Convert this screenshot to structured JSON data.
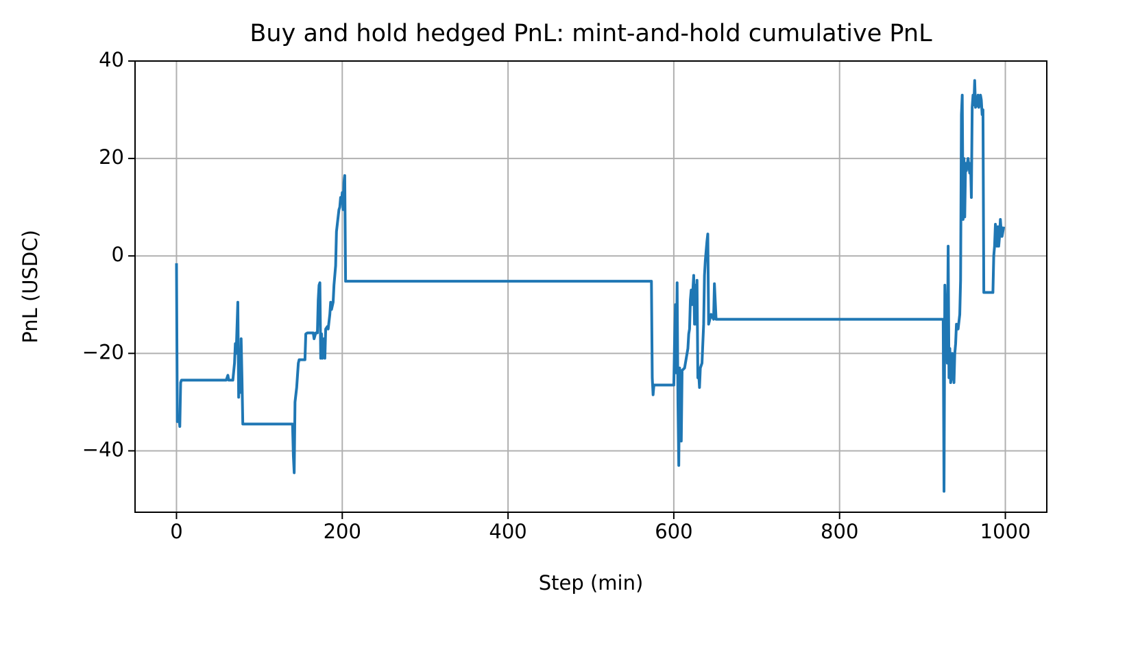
{
  "chart_data": {
    "type": "line",
    "title": "Buy and hold hedged PnL: mint-and-hold cumulative PnL",
    "x_label": "Step (min)",
    "y_label": "PnL (USDC)",
    "xlim": [
      -50,
      1050
    ],
    "ylim": [
      -52.6,
      40
    ],
    "xticks": [
      0,
      200,
      400,
      600,
      800,
      1000
    ],
    "yticks": [
      {
        "value": -40,
        "label": "−40"
      },
      {
        "value": -20,
        "label": "−20"
      },
      0,
      20,
      40
    ],
    "grid": true,
    "series": [
      {
        "color": "#1f77b4",
        "x": [
          0,
          1,
          3,
          4,
          5,
          6,
          60,
          62,
          63,
          68,
          70,
          71,
          72,
          74,
          75,
          76,
          77,
          78,
          79,
          80,
          140,
          141,
          142,
          143,
          145,
          147,
          148,
          155,
          156,
          158,
          165,
          166,
          168,
          170,
          171,
          172,
          173,
          174,
          175,
          176,
          178,
          179,
          180,
          182,
          183,
          185,
          186,
          187,
          189,
          190,
          192,
          193,
          195,
          196,
          197,
          198,
          199,
          200,
          201,
          202,
          203,
          204,
          573,
          574,
          575,
          576,
          600,
          601,
          602,
          603,
          604,
          605,
          606,
          607,
          608,
          609,
          610,
          613,
          615,
          617,
          618,
          619,
          620,
          621,
          622,
          623,
          624,
          625,
          626,
          627,
          628,
          629,
          630,
          631,
          632,
          634,
          635,
          636,
          637,
          638,
          640,
          641,
          642,
          645,
          648,
          649,
          651,
          653,
          925,
          926,
          927,
          928,
          929,
          930,
          931,
          932,
          933,
          934,
          935,
          936,
          937,
          938,
          939,
          940,
          941,
          943,
          945,
          946,
          947,
          948,
          949,
          950,
          951,
          952,
          953,
          955,
          957,
          958,
          959,
          960,
          961,
          962,
          963,
          964,
          966,
          967,
          968,
          970,
          971,
          972,
          973,
          974,
          985,
          986,
          987,
          988,
          989,
          990,
          991,
          992,
          993,
          994,
          995,
          996,
          998
        ],
        "values": [
          -1.5,
          -34,
          -33,
          -35,
          -26,
          -25.5,
          -25.5,
          -24.5,
          -25.5,
          -25.5,
          -22,
          -18,
          -20,
          -9.5,
          -29,
          -22,
          -28,
          -17,
          -25,
          -34.5,
          -34.5,
          -41,
          -44.5,
          -30,
          -27,
          -22,
          -21.3,
          -21.3,
          -16,
          -15.8,
          -15.8,
          -17,
          -15.8,
          -15.8,
          -9,
          -6,
          -5.5,
          -21,
          -16,
          -21,
          -17,
          -21,
          -15,
          -14.5,
          -15,
          -12,
          -9.5,
          -11,
          -9.5,
          -6,
          -2,
          5,
          8,
          9.5,
          10,
          12,
          11,
          13,
          9.5,
          15,
          16.5,
          -5.2,
          -5.2,
          -25,
          -28.5,
          -26.5,
          -26.5,
          -17,
          -10,
          -24,
          -5.5,
          -30,
          -43,
          -23,
          -26,
          -38,
          -23.5,
          -23,
          -21,
          -19,
          -16,
          -15,
          -9,
          -7,
          -10,
          -7,
          -4,
          -14,
          -6,
          -14,
          -5,
          -25,
          -24,
          -27,
          -23,
          -22,
          -18,
          -14,
          -4,
          -1,
          3,
          4.5,
          -14,
          -12,
          -13,
          -5.7,
          -13,
          -13,
          -13,
          -48.3,
          -6,
          -13,
          -8,
          -22,
          2,
          -25,
          -19,
          -26,
          -25,
          -20,
          -21,
          -26,
          -20,
          -18,
          -14,
          -15,
          -12,
          -5,
          29,
          33,
          7.5,
          20,
          8,
          19,
          17.5,
          20,
          17,
          19,
          12,
          30.5,
          33,
          31,
          36,
          30.5,
          31,
          33,
          30.5,
          33,
          32,
          29,
          30,
          -7.5,
          -7.5,
          0,
          2,
          6.5,
          4,
          2,
          6,
          2,
          4,
          7.5,
          5,
          4,
          6
        ]
      }
    ]
  }
}
